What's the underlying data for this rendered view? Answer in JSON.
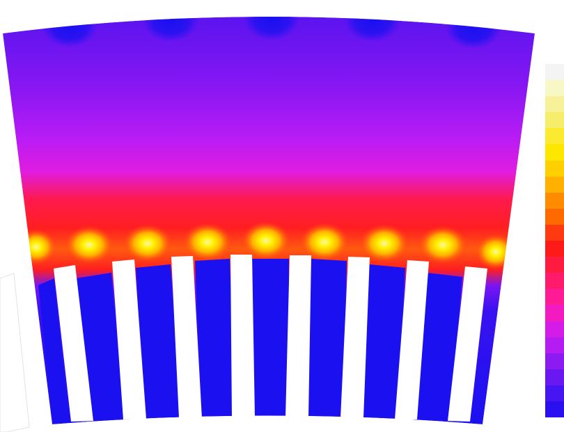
{
  "palette": {
    "background": "#ffffff",
    "field_blue": "#1a10f0",
    "field_violet": "#8a17f2",
    "field_magenta": "#d61cf4",
    "field_red": "#ff1f2a",
    "field_orange": "#ff8a00",
    "field_yellow": "#fff200",
    "slot": "#ffffff"
  },
  "colorbar": {
    "steps": [
      "#f4f4f4",
      "#f8f7c6",
      "#f7f19a",
      "#f6ee6a",
      "#fbea30",
      "#fde600",
      "#ffcf00",
      "#ffb000",
      "#ff8c00",
      "#ff6a00",
      "#ff3a10",
      "#ff1a1a",
      "#ff1a40",
      "#ff1a6a",
      "#ff1a96",
      "#f21ac0",
      "#d51be8",
      "#b51cf2",
      "#8e1af2",
      "#6a18f2",
      "#4714f2",
      "#2a10f0"
    ]
  }
}
